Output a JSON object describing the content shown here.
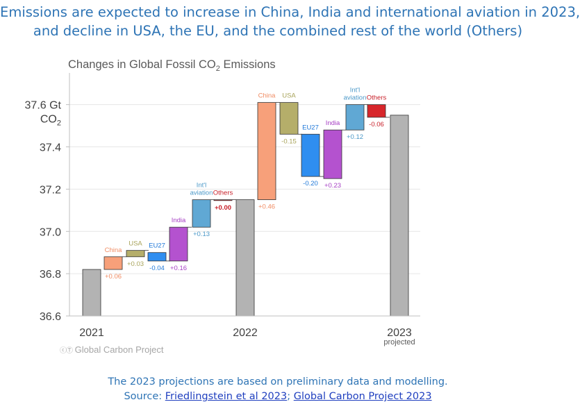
{
  "headline": {
    "line1": "Emissions are expected to increase in China, India and international aviation in 2023,",
    "line2": "and decline in USA, the EU, and the combined rest of the world (Others)"
  },
  "chart_data": {
    "type": "waterfall",
    "title_main": "Changes in Global Fossil CO",
    "title_sub": "2",
    "title_tail": " Emissions",
    "ylim": [
      36.6,
      37.75
    ],
    "yticks": [
      {
        "value": 37.6,
        "label": "37.6 Gt"
      },
      {
        "value": 37.4,
        "label": "37.4"
      },
      {
        "value": 37.2,
        "label": "37.2"
      },
      {
        "value": 37.0,
        "label": "37.0"
      },
      {
        "value": 36.8,
        "label": "36.8"
      },
      {
        "value": 36.6,
        "label": "36.6"
      }
    ],
    "yunit_main": "CO",
    "yunit_sub": "2",
    "years": [
      {
        "label": "2021",
        "sublabel": "",
        "value": 36.82
      },
      {
        "label": "2022",
        "sublabel": "",
        "value": 37.15
      },
      {
        "label": "2023",
        "sublabel": "projected",
        "value": 37.55
      }
    ],
    "grid": true,
    "changes": [
      {
        "period": 0,
        "name": "China",
        "value": 0.06,
        "label": "+0.06",
        "color": "#f7a07a",
        "text_color": "#f08c63",
        "start": 36.82
      },
      {
        "period": 0,
        "name": "USA",
        "value": 0.03,
        "label": "+0.03",
        "color": "#b5ae6a",
        "text_color": "#a8a35a",
        "start": 36.88
      },
      {
        "period": 0,
        "name": "EU27",
        "value": -0.04,
        "label": "-0.04",
        "color": "#2f8ef0",
        "text_color": "#1f78d8",
        "start": 36.9
      },
      {
        "period": 0,
        "name": "India",
        "value": 0.16,
        "label": "+0.16",
        "color": "#b452cf",
        "text_color": "#a63fc4",
        "start": 36.86
      },
      {
        "period": 0,
        "name": "Int'l aviation",
        "value": 0.13,
        "label": "+0.13",
        "color": "#60a8d4",
        "text_color": "#4a98c8",
        "start": 37.02
      },
      {
        "period": 0,
        "name": "Others",
        "value": 0.0,
        "label": "+0.00",
        "color": "#d7262b",
        "text_color": "#c8202a",
        "start": 37.15
      },
      {
        "period": 1,
        "name": "China",
        "value": 0.46,
        "label": "+0.46",
        "color": "#f7a07a",
        "text_color": "#f08c63",
        "start": 37.15
      },
      {
        "period": 1,
        "name": "USA",
        "value": -0.15,
        "label": "-0.15",
        "color": "#b5ae6a",
        "text_color": "#a8a35a",
        "start": 37.61
      },
      {
        "period": 1,
        "name": "EU27",
        "value": -0.2,
        "label": "-0.20",
        "color": "#2f8ef0",
        "text_color": "#1f78d8",
        "start": 37.46
      },
      {
        "period": 1,
        "name": "India",
        "value": 0.23,
        "label": "+0.23",
        "color": "#b452cf",
        "text_color": "#a63fc4",
        "start": 37.25
      },
      {
        "period": 1,
        "name": "Int'l aviation",
        "value": 0.12,
        "label": "+0.12",
        "color": "#60a8d4",
        "text_color": "#4a98c8",
        "start": 37.48
      },
      {
        "period": 1,
        "name": "Others",
        "value": -0.06,
        "label": "-0.06",
        "color": "#d7262b",
        "text_color": "#c8202a",
        "start": 37.6
      }
    ]
  },
  "credit": "Global Carbon Project",
  "footer": {
    "line1": "The 2023 projections are based on preliminary data and modelling.",
    "source_prefix": "Source: ",
    "link1": "Friedlingstein et al 2023",
    "separator": "; ",
    "link2": "Global Carbon Project 2023"
  }
}
